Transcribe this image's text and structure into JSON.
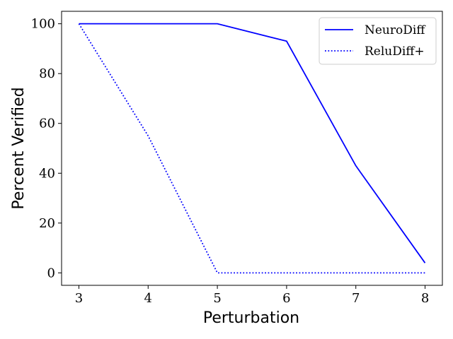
{
  "chart_data": {
    "type": "line",
    "title": "",
    "xlabel": "Perturbation",
    "ylabel": "Percent Verified",
    "x": [
      3,
      4,
      5,
      6,
      7,
      8
    ],
    "xlim": [
      2.75,
      8.25
    ],
    "ylim": [
      -5,
      105
    ],
    "xticks": [
      3,
      4,
      5,
      6,
      7,
      8
    ],
    "yticks": [
      0,
      20,
      40,
      60,
      80,
      100
    ],
    "grid": false,
    "legend_position": "top-right",
    "series": [
      {
        "name": "NeuroDiff",
        "values": [
          100,
          100,
          100,
          93,
          43,
          4
        ],
        "color": "#0000ff",
        "style": "solid"
      },
      {
        "name": "ReluDiff+",
        "values": [
          100,
          55,
          0,
          0,
          0,
          0
        ],
        "color": "#0000ff",
        "style": "dotted"
      }
    ]
  }
}
